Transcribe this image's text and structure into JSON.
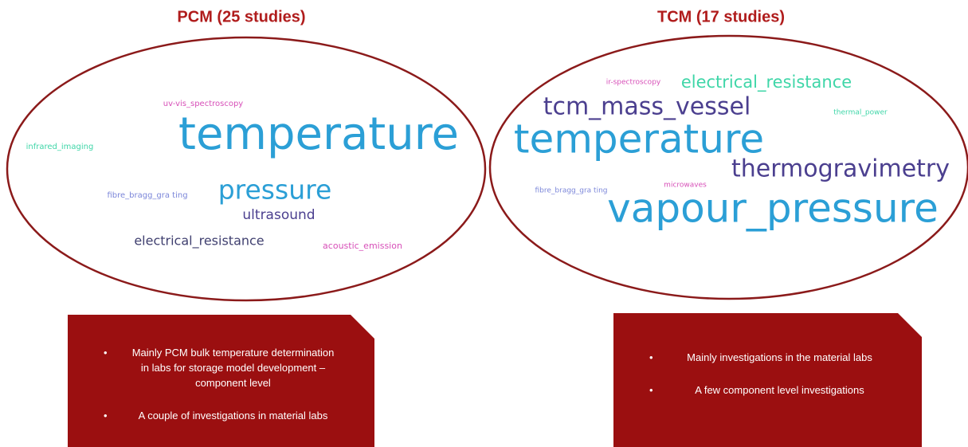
{
  "panels": [
    {
      "title": "PCM (25 studies)",
      "words": [
        "uv-vis_spectroscopy",
        "temperature",
        "infrared_imaging",
        "fibre_bragg_gra ting",
        "pressure",
        "ultrasound",
        "electrical_resistance",
        "acoustic_emission"
      ],
      "bullets": [
        "Mainly PCM bulk temperature determination in labs for storage model development – component level",
        "A couple of investigations in material labs"
      ]
    },
    {
      "title": "TCM (17 studies)",
      "words": [
        "ir-spectroscopy",
        "electrical_resistance",
        "tcm_mass_vessel",
        "thermal_power",
        "temperature",
        "thermogravimetry",
        "fibre_bragg_gra ting",
        "microwaves",
        "vapour_pressure"
      ],
      "bullets": [
        "Mainly investigations in the material labs",
        "A few component level investigations"
      ]
    }
  ]
}
